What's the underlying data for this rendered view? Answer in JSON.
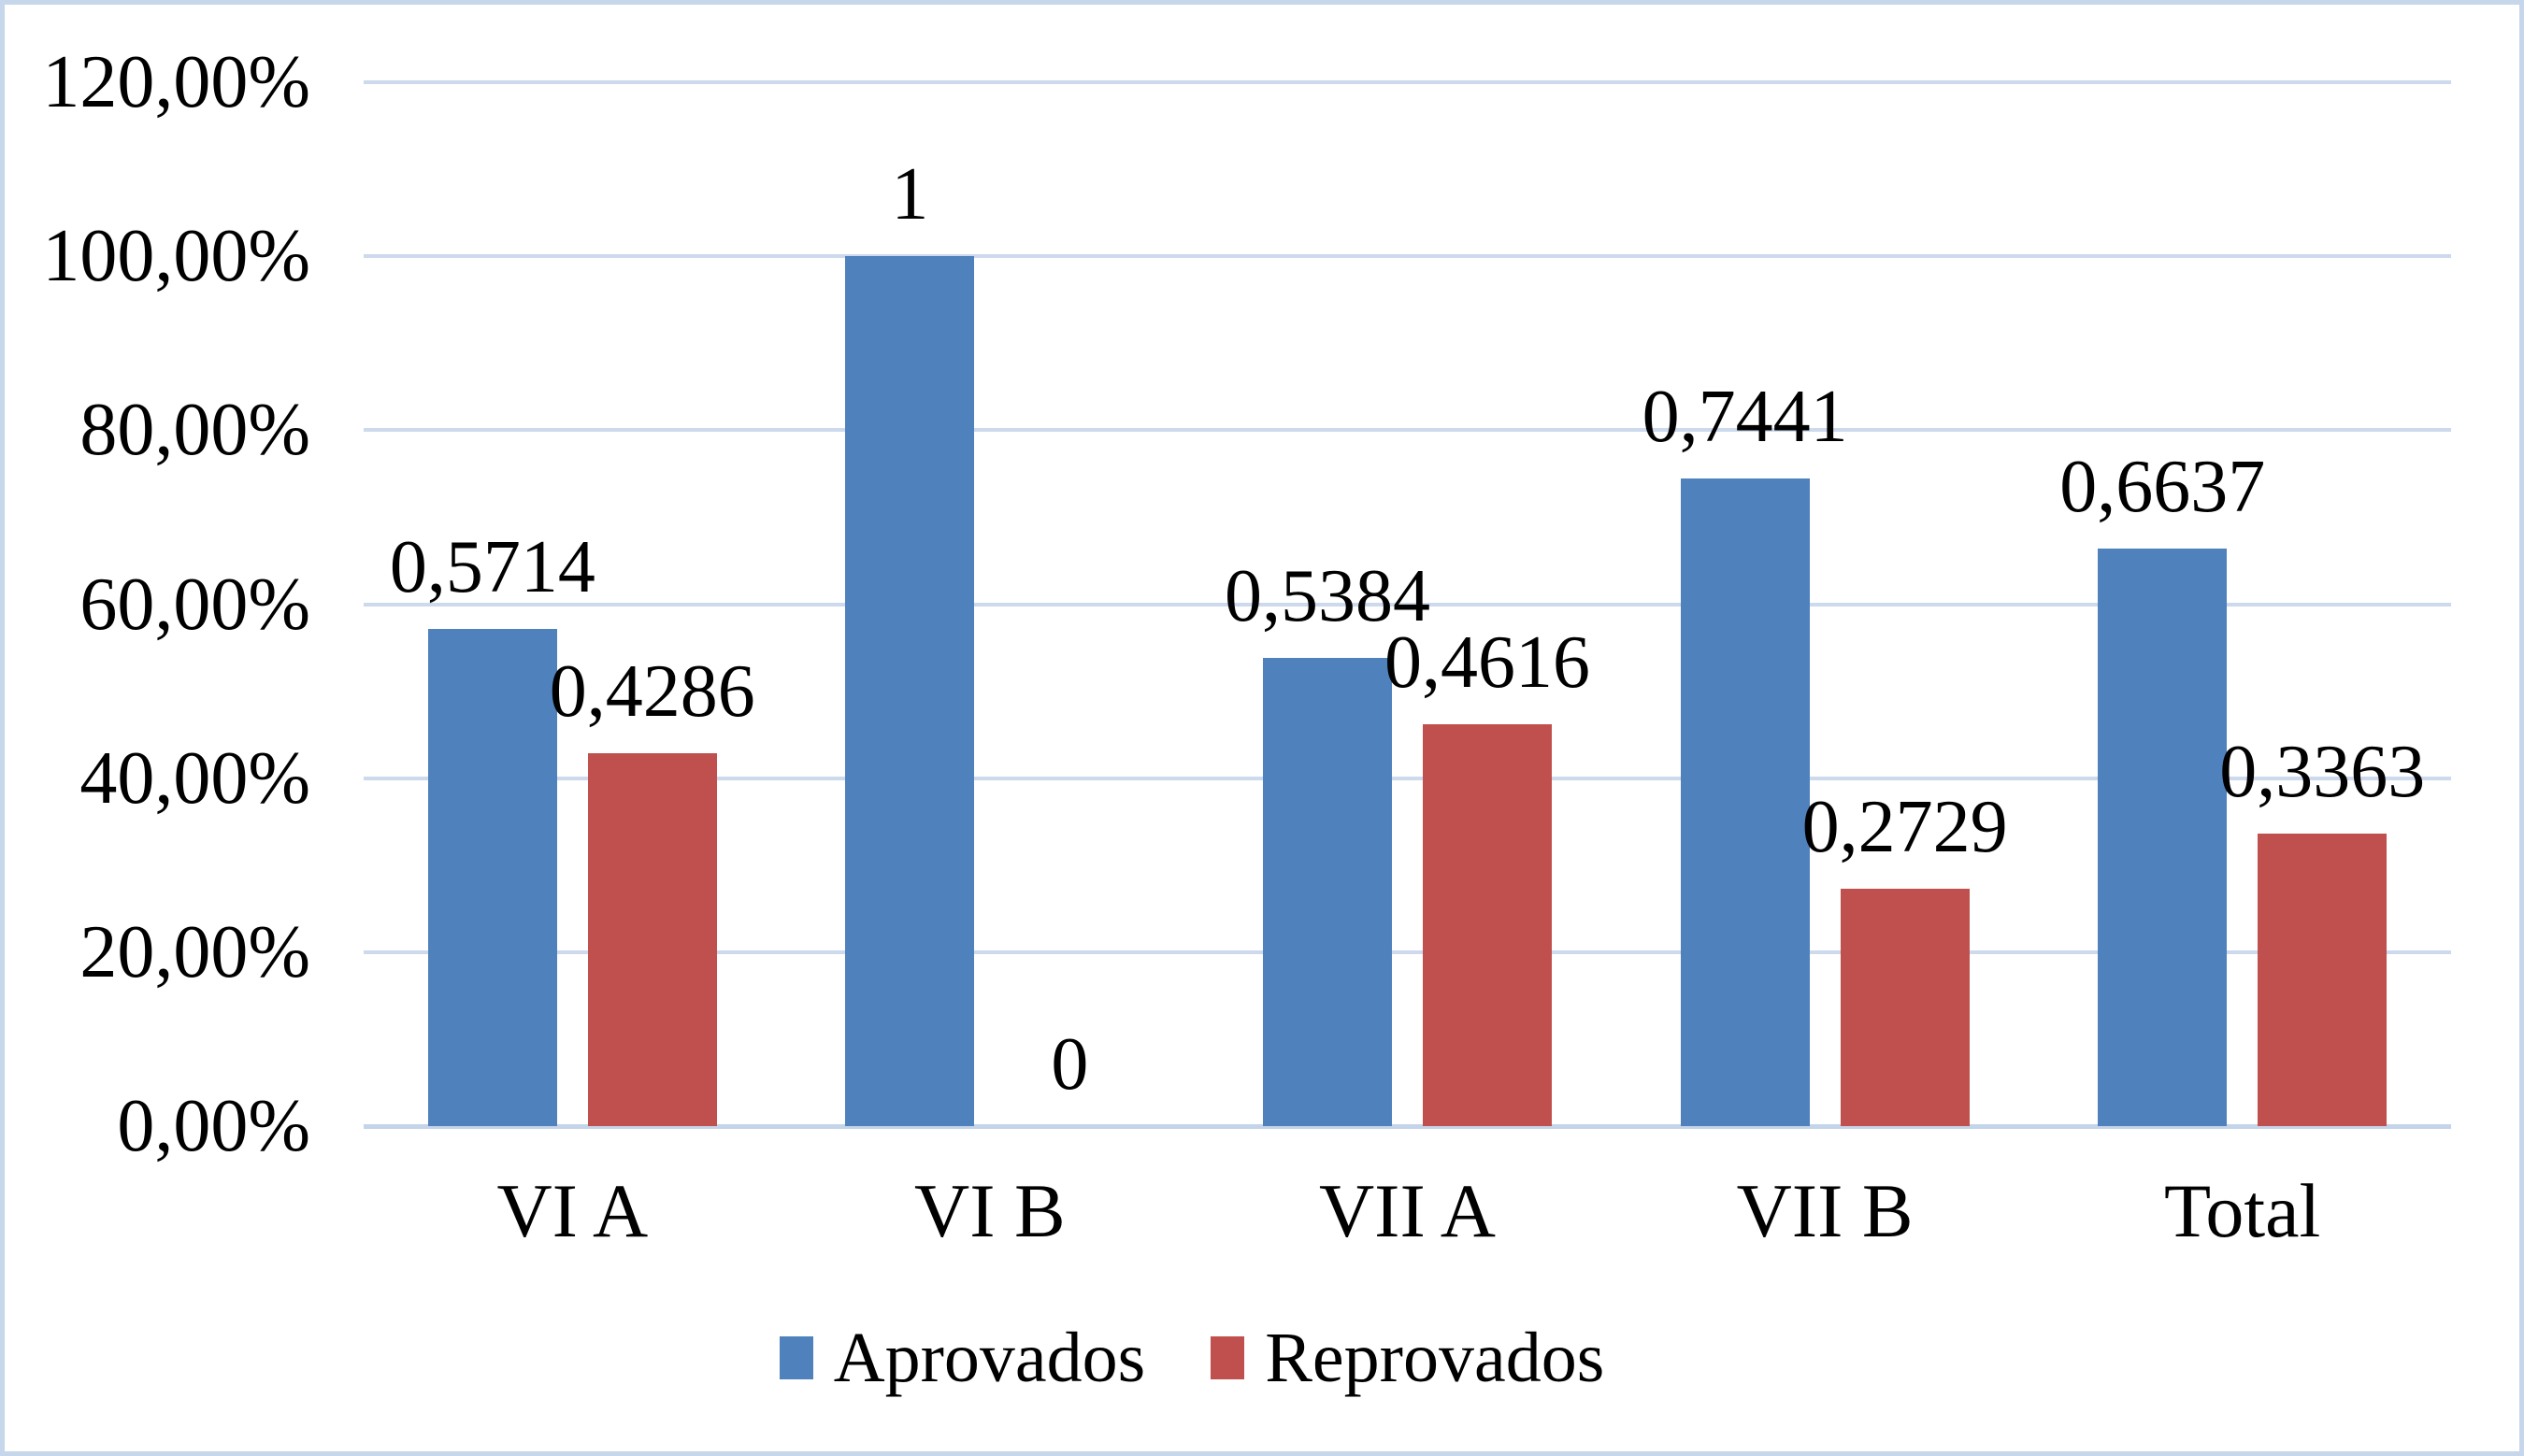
{
  "chart_data": {
    "type": "bar",
    "title": "",
    "xlabel": "",
    "ylabel": "",
    "categories": [
      "VI A",
      "VI B",
      "VII A",
      "VII B",
      "Total"
    ],
    "series": [
      {
        "name": "Aprovados",
        "color": "#4F81BD",
        "values": [
          0.5714,
          1,
          0.5384,
          0.7441,
          0.6637
        ],
        "labels": [
          "0,5714",
          "1",
          "0,5384",
          "0,7441",
          "0,6637"
        ]
      },
      {
        "name": "Reprovados",
        "color": "#C0504D",
        "values": [
          0.4286,
          0,
          0.4616,
          0.2729,
          0.3363
        ],
        "labels": [
          "0,4286",
          "0",
          "0,4616",
          "0,2729",
          "0,3363"
        ]
      }
    ],
    "y_axis": {
      "min": 0,
      "max": 1.2,
      "step": 0.2,
      "ticks": [
        "0,00%",
        "20,00%",
        "40,00%",
        "60,00%",
        "80,00%",
        "100,00%",
        "120,00%"
      ],
      "format": "percent-comma-decimal"
    },
    "grid": true,
    "legend_position": "bottom",
    "colors": {
      "gridline": "#CDD9EC",
      "axis_line": "#C4D4E9",
      "frame_border": "#C6D6EB",
      "text": "#000000"
    }
  }
}
